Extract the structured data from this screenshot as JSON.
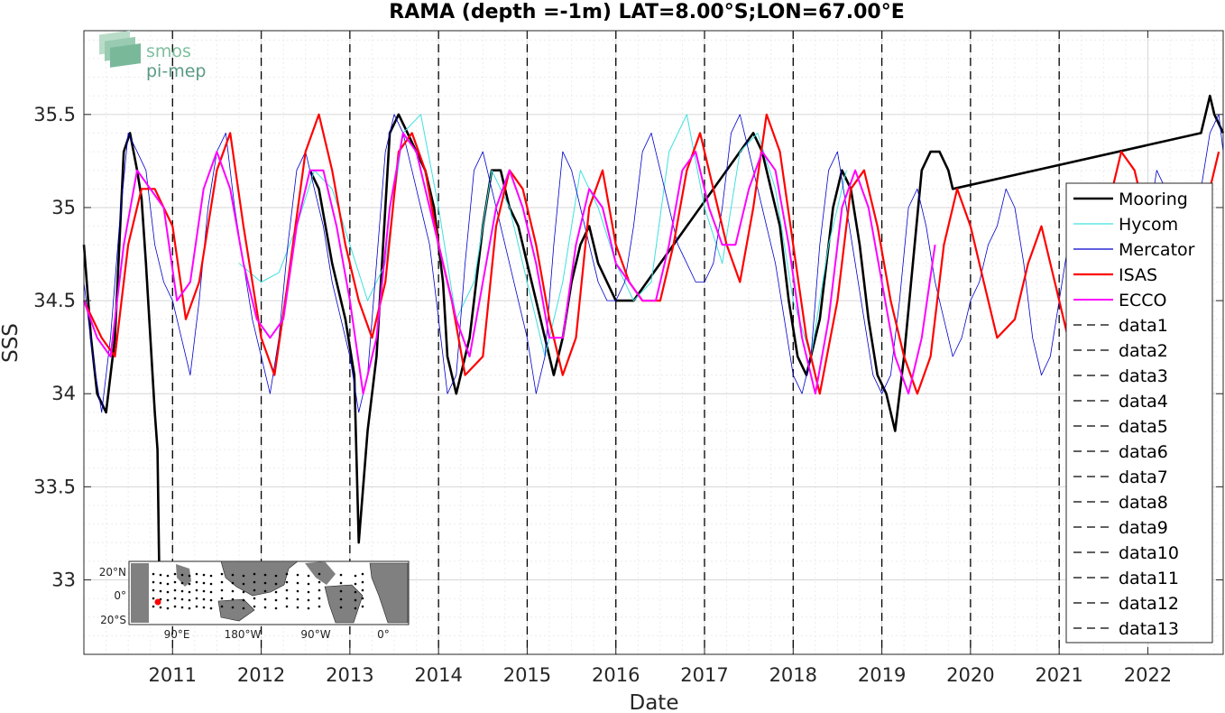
{
  "chart_data": {
    "type": "line",
    "title": "RAMA (depth =-1m) LAT=8.00°S;LON=67.00°E",
    "xlabel": "Date",
    "ylabel": "SSS",
    "xlim": [
      2010.0,
      2022.85
    ],
    "ylim": [
      32.6,
      35.95
    ],
    "x_ticks": [
      {
        "value": 2011,
        "label": "2011"
      },
      {
        "value": 2012,
        "label": "2012"
      },
      {
        "value": 2013,
        "label": "2013"
      },
      {
        "value": 2014,
        "label": "2014"
      },
      {
        "value": 2015,
        "label": "2015"
      },
      {
        "value": 2016,
        "label": "2016"
      },
      {
        "value": 2017,
        "label": "2017"
      },
      {
        "value": 2018,
        "label": "2018"
      },
      {
        "value": 2019,
        "label": "2019"
      },
      {
        "value": 2020,
        "label": "2020"
      },
      {
        "value": 2021,
        "label": "2021"
      },
      {
        "value": 2022,
        "label": "2022"
      }
    ],
    "y_ticks": [
      {
        "value": 33,
        "label": "33"
      },
      {
        "value": 33.5,
        "label": "33.5"
      },
      {
        "value": 34,
        "label": "34"
      },
      {
        "value": 34.5,
        "label": "34.5"
      },
      {
        "value": 35,
        "label": "35"
      },
      {
        "value": 35.5,
        "label": "35.5"
      }
    ],
    "grid": true,
    "legend_position": "right",
    "vertical_dashed_lines": [
      2011,
      2012,
      2013,
      2014,
      2015,
      2016,
      2017,
      2018,
      2019,
      2020,
      2021
    ],
    "series": [
      {
        "name": "Mooring",
        "color": "#000000",
        "width": 2.6,
        "x": [
          2010.0,
          2010.08,
          2010.15,
          2010.25,
          2010.35,
          2010.45,
          2010.52,
          2010.6,
          2010.65,
          2010.7,
          2010.75,
          2010.8,
          2010.83,
          2010.85,
          2011.0,
          2012.55,
          2012.65,
          2012.8,
          2012.95,
          2013.05,
          2013.1,
          2013.2,
          2013.3,
          2013.45,
          2013.55,
          2013.65,
          2013.75,
          2013.85,
          2013.95,
          2014.05,
          2014.1,
          2014.2,
          2014.35,
          2014.5,
          2014.6,
          2014.7,
          2014.8,
          2014.9,
          2015.0,
          2015.1,
          2015.2,
          2015.3,
          2015.4,
          2015.5,
          2015.6,
          2015.7,
          2015.8,
          2015.9,
          2016.0,
          2016.1,
          2016.2,
          2017.4,
          2017.55,
          2017.65,
          2017.75,
          2017.85,
          2017.95,
          2018.05,
          2018.15,
          2018.3,
          2018.45,
          2018.55,
          2018.65,
          2018.75,
          2018.85,
          2018.95,
          2019.05,
          2019.15,
          2019.25,
          2019.35,
          2019.45,
          2019.55,
          2019.65,
          2019.75,
          2019.8,
          2022.6,
          2022.7,
          2022.75,
          2022.85
        ],
        "y": [
          34.8,
          34.3,
          34.0,
          33.9,
          34.3,
          35.3,
          35.4,
          35.2,
          35.05,
          34.7,
          34.3,
          33.9,
          33.7,
          33.05,
          null,
          35.2,
          35.1,
          34.7,
          34.4,
          34.1,
          33.2,
          33.8,
          34.2,
          35.4,
          35.5,
          35.4,
          35.3,
          35.2,
          35.0,
          34.6,
          34.2,
          34.0,
          34.3,
          34.9,
          35.2,
          35.2,
          35.0,
          34.9,
          34.7,
          34.5,
          34.3,
          34.1,
          34.3,
          34.6,
          34.8,
          34.9,
          34.7,
          34.6,
          34.5,
          34.5,
          34.5,
          35.3,
          35.4,
          35.3,
          35.1,
          34.9,
          34.5,
          34.2,
          34.1,
          34.4,
          35.0,
          35.2,
          35.1,
          34.8,
          34.4,
          34.1,
          34.0,
          33.8,
          34.2,
          34.7,
          35.2,
          35.3,
          35.3,
          35.2,
          35.1,
          35.4,
          35.6,
          35.5,
          35.4
        ]
      },
      {
        "name": "Hycom",
        "color": "#40e0e0",
        "width": 1.0,
        "x": [
          2011.75,
          2012.0,
          2012.2,
          2012.4,
          2012.6,
          2012.8,
          2013.0,
          2013.2,
          2013.4,
          2013.6,
          2013.8,
          2014.0,
          2014.2,
          2014.4,
          2014.6,
          2014.8,
          2015.0,
          2015.2,
          2015.4,
          2015.6,
          2015.8,
          2016.0,
          2016.2,
          2016.4,
          2016.6,
          2016.8,
          2017.0,
          2017.2,
          2017.4,
          2017.6,
          2017.8,
          2018.0,
          2018.2,
          2018.4,
          2018.6
        ],
        "y": [
          34.7,
          34.6,
          34.65,
          34.9,
          35.2,
          35.1,
          34.8,
          34.5,
          34.7,
          35.4,
          35.5,
          35.0,
          34.4,
          34.6,
          35.2,
          35.0,
          34.6,
          34.2,
          34.6,
          35.2,
          35.0,
          34.7,
          34.5,
          34.6,
          35.3,
          35.5,
          35.0,
          34.7,
          35.3,
          35.4,
          35.1,
          34.5,
          34.2,
          34.8,
          35.2
        ]
      },
      {
        "name": "Mercator",
        "color": "#0000cc",
        "width": 0.8,
        "x": [
          2010.0,
          2010.1,
          2010.2,
          2010.3,
          2010.4,
          2010.5,
          2010.6,
          2010.7,
          2010.8,
          2010.9,
          2011.0,
          2011.1,
          2011.2,
          2011.3,
          2011.4,
          2011.5,
          2011.6,
          2011.7,
          2011.8,
          2011.9,
          2012.0,
          2012.1,
          2012.2,
          2012.3,
          2012.4,
          2012.5,
          2012.6,
          2012.7,
          2012.8,
          2012.9,
          2013.0,
          2013.1,
          2013.2,
          2013.3,
          2013.4,
          2013.5,
          2013.6,
          2013.7,
          2013.8,
          2013.9,
          2014.0,
          2014.1,
          2014.2,
          2014.3,
          2014.4,
          2014.5,
          2014.6,
          2014.7,
          2014.8,
          2014.9,
          2015.0,
          2015.1,
          2015.2,
          2015.3,
          2015.4,
          2015.5,
          2015.6,
          2015.7,
          2015.8,
          2015.9,
          2016.0,
          2016.1,
          2016.2,
          2016.3,
          2016.4,
          2016.5,
          2016.6,
          2016.7,
          2016.8,
          2016.9,
          2017.0,
          2017.1,
          2017.2,
          2017.3,
          2017.4,
          2017.5,
          2017.6,
          2017.7,
          2017.8,
          2017.9,
          2018.0,
          2018.1,
          2018.2,
          2018.3,
          2018.4,
          2018.5,
          2018.6,
          2018.7,
          2018.8,
          2018.9,
          2019.0,
          2019.1,
          2019.2,
          2019.3,
          2019.4,
          2019.5,
          2019.6,
          2019.7,
          2019.8,
          2019.9,
          2020.0,
          2020.1,
          2020.2,
          2020.3,
          2020.4,
          2020.5,
          2020.6,
          2020.7,
          2020.8,
          2020.9,
          2021.0,
          2021.1,
          2021.2,
          2021.3,
          2021.4,
          2021.5,
          2021.6,
          2021.7,
          2021.8,
          2021.9,
          2022.0,
          2022.1,
          2022.2,
          2022.3,
          2022.4,
          2022.5,
          2022.6,
          2022.7,
          2022.8,
          2022.85
        ],
        "y": [
          34.6,
          34.2,
          33.9,
          34.3,
          34.9,
          35.4,
          35.3,
          35.2,
          34.8,
          34.6,
          34.5,
          34.3,
          34.1,
          34.5,
          35.0,
          35.3,
          35.4,
          35.0,
          34.7,
          34.4,
          34.2,
          34.0,
          34.3,
          34.8,
          35.2,
          35.3,
          35.1,
          34.9,
          34.6,
          34.4,
          34.2,
          33.9,
          34.1,
          34.7,
          35.3,
          35.5,
          35.4,
          35.2,
          35.0,
          34.8,
          34.4,
          34.0,
          34.1,
          34.7,
          35.2,
          35.3,
          35.1,
          34.9,
          34.7,
          34.5,
          34.3,
          34.0,
          34.2,
          34.8,
          35.3,
          35.2,
          35.0,
          34.8,
          34.6,
          34.5,
          34.5,
          34.6,
          34.9,
          35.3,
          35.4,
          35.2,
          35.0,
          34.8,
          34.7,
          34.6,
          34.6,
          34.7,
          35.0,
          35.4,
          35.5,
          35.3,
          35.1,
          34.9,
          34.7,
          34.4,
          34.1,
          34.0,
          34.2,
          34.8,
          35.2,
          35.3,
          35.0,
          34.7,
          34.4,
          34.1,
          34.0,
          34.1,
          34.5,
          35.0,
          35.1,
          34.9,
          34.6,
          34.4,
          34.2,
          34.3,
          34.5,
          34.6,
          34.8,
          34.9,
          35.1,
          35.0,
          34.7,
          34.3,
          34.1,
          34.2,
          34.5,
          34.8,
          35.1,
          35.0,
          34.9,
          34.8,
          34.6,
          34.3,
          34.0,
          34.2,
          34.9,
          35.2,
          35.1,
          34.8,
          34.6,
          34.7,
          35.1,
          35.4,
          35.5,
          35.3
        ]
      },
      {
        "name": "ISAS",
        "color": "#ff0000",
        "width": 2.2,
        "x": [
          2010.0,
          2010.2,
          2010.35,
          2010.5,
          2010.65,
          2010.8,
          2011.0,
          2011.15,
          2011.3,
          2011.5,
          2011.65,
          2011.8,
          2012.0,
          2012.15,
          2012.3,
          2012.5,
          2012.65,
          2012.8,
          2012.95,
          2013.1,
          2013.25,
          2013.4,
          2013.55,
          2013.7,
          2013.85,
          2014.0,
          2014.15,
          2014.3,
          2014.5,
          2014.65,
          2014.8,
          2014.95,
          2015.1,
          2015.25,
          2015.4,
          2015.55,
          2015.7,
          2015.85,
          2016.0,
          2016.15,
          2016.3,
          2016.5,
          2016.65,
          2016.8,
          2016.95,
          2017.1,
          2017.25,
          2017.4,
          2017.55,
          2017.7,
          2017.85,
          2018.0,
          2018.15,
          2018.3,
          2018.5,
          2018.65,
          2018.8,
          2018.95,
          2019.1,
          2019.25,
          2019.4,
          2019.55,
          2019.7,
          2019.85,
          2020.0,
          2020.15,
          2020.3,
          2020.5,
          2020.65,
          2020.8,
          2020.95,
          2021.1,
          2021.25,
          2021.4,
          2021.55,
          2021.7,
          2021.85,
          2022.0,
          2022.15,
          2022.3,
          2022.5,
          2022.65,
          2022.8
        ],
        "y": [
          34.5,
          34.3,
          34.2,
          34.8,
          35.1,
          35.1,
          34.9,
          34.4,
          34.6,
          35.2,
          35.4,
          34.9,
          34.3,
          34.1,
          34.6,
          35.3,
          35.5,
          35.2,
          34.8,
          34.5,
          34.3,
          34.6,
          35.3,
          35.4,
          35.2,
          34.8,
          34.5,
          34.1,
          34.2,
          34.9,
          35.2,
          35.1,
          34.8,
          34.4,
          34.1,
          34.3,
          35.0,
          35.2,
          34.8,
          34.6,
          34.5,
          34.5,
          34.8,
          35.2,
          35.4,
          35.1,
          34.8,
          34.6,
          35.0,
          35.5,
          35.3,
          34.8,
          34.3,
          34.0,
          34.5,
          35.1,
          35.2,
          34.9,
          34.5,
          34.2,
          34.0,
          34.2,
          34.8,
          35.1,
          34.9,
          34.6,
          34.3,
          34.4,
          34.7,
          34.9,
          34.6,
          34.3,
          34.3,
          34.4,
          35.0,
          35.3,
          35.2,
          34.9,
          34.5,
          34.2,
          34.4,
          35.0,
          35.3
        ]
      },
      {
        "name": "ECCO",
        "color": "#ff00ff",
        "width": 2.0,
        "x": [
          2010.0,
          2010.15,
          2010.3,
          2010.45,
          2010.6,
          2010.75,
          2010.9,
          2011.05,
          2011.2,
          2011.35,
          2011.5,
          2011.65,
          2011.8,
          2011.95,
          2012.1,
          2012.25,
          2012.4,
          2012.55,
          2012.7,
          2012.85,
          2013.0,
          2013.15,
          2013.3,
          2013.45,
          2013.6,
          2013.75,
          2013.9,
          2014.05,
          2014.2,
          2014.35,
          2014.5,
          2014.65,
          2014.8,
          2014.95,
          2015.1,
          2015.25,
          2015.4,
          2015.55,
          2015.7,
          2015.85,
          2016.0,
          2016.15,
          2016.3,
          2016.45,
          2016.6,
          2016.75,
          2016.9,
          2017.05,
          2017.2,
          2017.35,
          2017.5,
          2017.65,
          2017.8,
          2017.95,
          2018.1,
          2018.25,
          2018.4,
          2018.55,
          2018.7,
          2018.85,
          2019.0,
          2019.15,
          2019.3,
          2019.45,
          2019.6
        ],
        "y": [
          34.5,
          34.3,
          34.2,
          34.8,
          35.2,
          35.1,
          35.0,
          34.5,
          34.6,
          35.1,
          35.3,
          35.1,
          34.7,
          34.4,
          34.3,
          34.4,
          34.9,
          35.2,
          35.2,
          34.9,
          34.5,
          34.0,
          34.3,
          35.0,
          35.4,
          35.3,
          35.0,
          34.7,
          34.4,
          34.2,
          34.6,
          35.0,
          35.2,
          35.0,
          34.7,
          34.3,
          34.3,
          34.8,
          35.1,
          35.0,
          34.7,
          34.6,
          34.5,
          34.5,
          34.8,
          35.2,
          35.3,
          35.0,
          34.8,
          34.8,
          35.1,
          35.3,
          35.2,
          34.8,
          34.3,
          34.0,
          34.4,
          35.0,
          35.2,
          35.0,
          34.6,
          34.2,
          34.0,
          34.3,
          34.8
        ]
      }
    ],
    "legend": [
      "Mooring",
      "Hycom",
      "Mercator",
      "ISAS",
      "ECCO",
      "data1",
      "data2",
      "data3",
      "data4",
      "data5",
      "data6",
      "data7",
      "data8",
      "data9",
      "data10",
      "data11",
      "data12",
      "data13"
    ],
    "inset_map": {
      "x_tick_labels": [
        "90°E",
        "180°W",
        "90°W",
        "0°"
      ],
      "y_tick_labels": [
        "20°N",
        "0°",
        "20°S"
      ]
    }
  },
  "logo": {
    "line1": "smos",
    "line2": "pi-mep"
  }
}
